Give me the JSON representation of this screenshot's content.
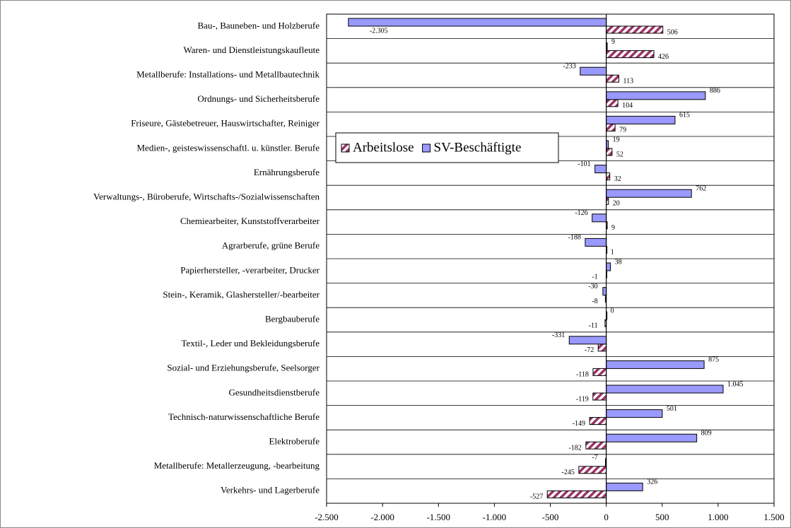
{
  "chart_data": {
    "type": "bar",
    "orientation": "horizontal",
    "categories": [
      "Bau-, Bauneben- und Holzberufe",
      "Waren- und Dienstleistungskaufleute",
      "Metallberufe: Installations- und Metallbautechnik",
      "Ordnungs- und Sicherheitsberufe",
      "Friseure, Gästebetreuer, Hauswirtschafter, Reiniger",
      "Medien-, geisteswissenschaftl. u. künstler. Berufe",
      "Ernährungsberufe",
      "Verwaltungs-, Büroberufe, Wirtschafts-/Sozialwissenschaften",
      "Chemiearbeiter, Kunststoffverarbeiter",
      "Agrarberufe, grüne Berufe",
      "Papierhersteller, -verarbeiter, Drucker",
      "Stein-, Keramik, Glashersteller/-bearbeiter",
      "Bergbauberufe",
      "Textil-, Leder und Bekleidungsberufe",
      "Sozial- und Erziehungsberufe, Seelsorger",
      "Gesundheitsdienstberufe",
      "Technisch-naturwissenschaftliche Berufe",
      "Elektroberufe",
      "Metallberufe: Metallerzeugung, -bearbeitung",
      "Verkehrs- und Lagerberufe"
    ],
    "series": [
      {
        "name": "Arbeitslose",
        "color": "#993366",
        "hatch": true,
        "values": [
          506,
          426,
          113,
          104,
          79,
          52,
          32,
          20,
          9,
          1,
          -1,
          -8,
          -11,
          -72,
          -118,
          -119,
          -149,
          -182,
          -245,
          -527
        ]
      },
      {
        "name": "SV-Beschäftigte",
        "color": "#9999ff",
        "hatch": false,
        "values": [
          -2305,
          9,
          -233,
          886,
          615,
          19,
          -101,
          762,
          -126,
          -188,
          38,
          -30,
          0,
          -331,
          875,
          1045,
          501,
          809,
          -7,
          326
        ],
        "value_labels": [
          "-2.305",
          "9",
          "-233",
          "886",
          "615",
          "19",
          "-101",
          "762",
          "-126",
          "-188",
          "38",
          "-30",
          "0",
          "-331",
          "875",
          "1.045",
          "501",
          "809",
          "-7",
          "326"
        ]
      }
    ],
    "xlim": [
      -2500,
      1500
    ],
    "xticks": [
      {
        "value": -2500,
        "label": "-2.500"
      },
      {
        "value": -2000,
        "label": "-2.000"
      },
      {
        "value": -1500,
        "label": "-1.500"
      },
      {
        "value": -1000,
        "label": "-1.000"
      },
      -500,
      0,
      500,
      {
        "value": 1000,
        "label": "1.000"
      },
      {
        "value": 1500,
        "label": "1.500"
      }
    ],
    "grid": true,
    "legend": "upper-left"
  }
}
